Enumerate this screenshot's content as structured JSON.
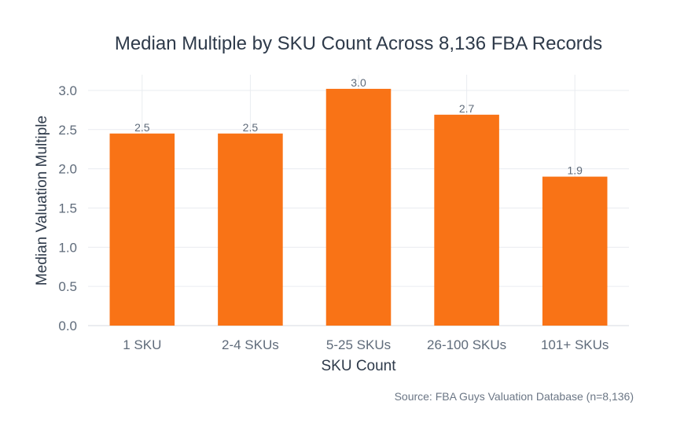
{
  "chart_data": {
    "type": "bar",
    "title": "Median Multiple by SKU Count Across 8,136 FBA Records",
    "xlabel": "SKU Count",
    "ylabel": "Median Valuation Multiple",
    "categories": [
      "1 SKU",
      "2-4 SKUs",
      "5-25 SKUs",
      "26-100 SKUs",
      "101+ SKUs"
    ],
    "values": [
      2.45,
      2.45,
      3.02,
      2.69,
      1.9
    ],
    "data_labels": [
      "2.5",
      "2.5",
      "3.0",
      "2.7",
      "1.9"
    ],
    "ylim": [
      0,
      3.2
    ],
    "yticks": [
      "0.0",
      "0.5",
      "1.0",
      "1.5",
      "2.0",
      "2.5",
      "3.0"
    ],
    "grid": true,
    "legend": "none",
    "bar_color": "#f97316",
    "source_note": "Source: FBA Guys Valuation Database (n=8,136)"
  }
}
